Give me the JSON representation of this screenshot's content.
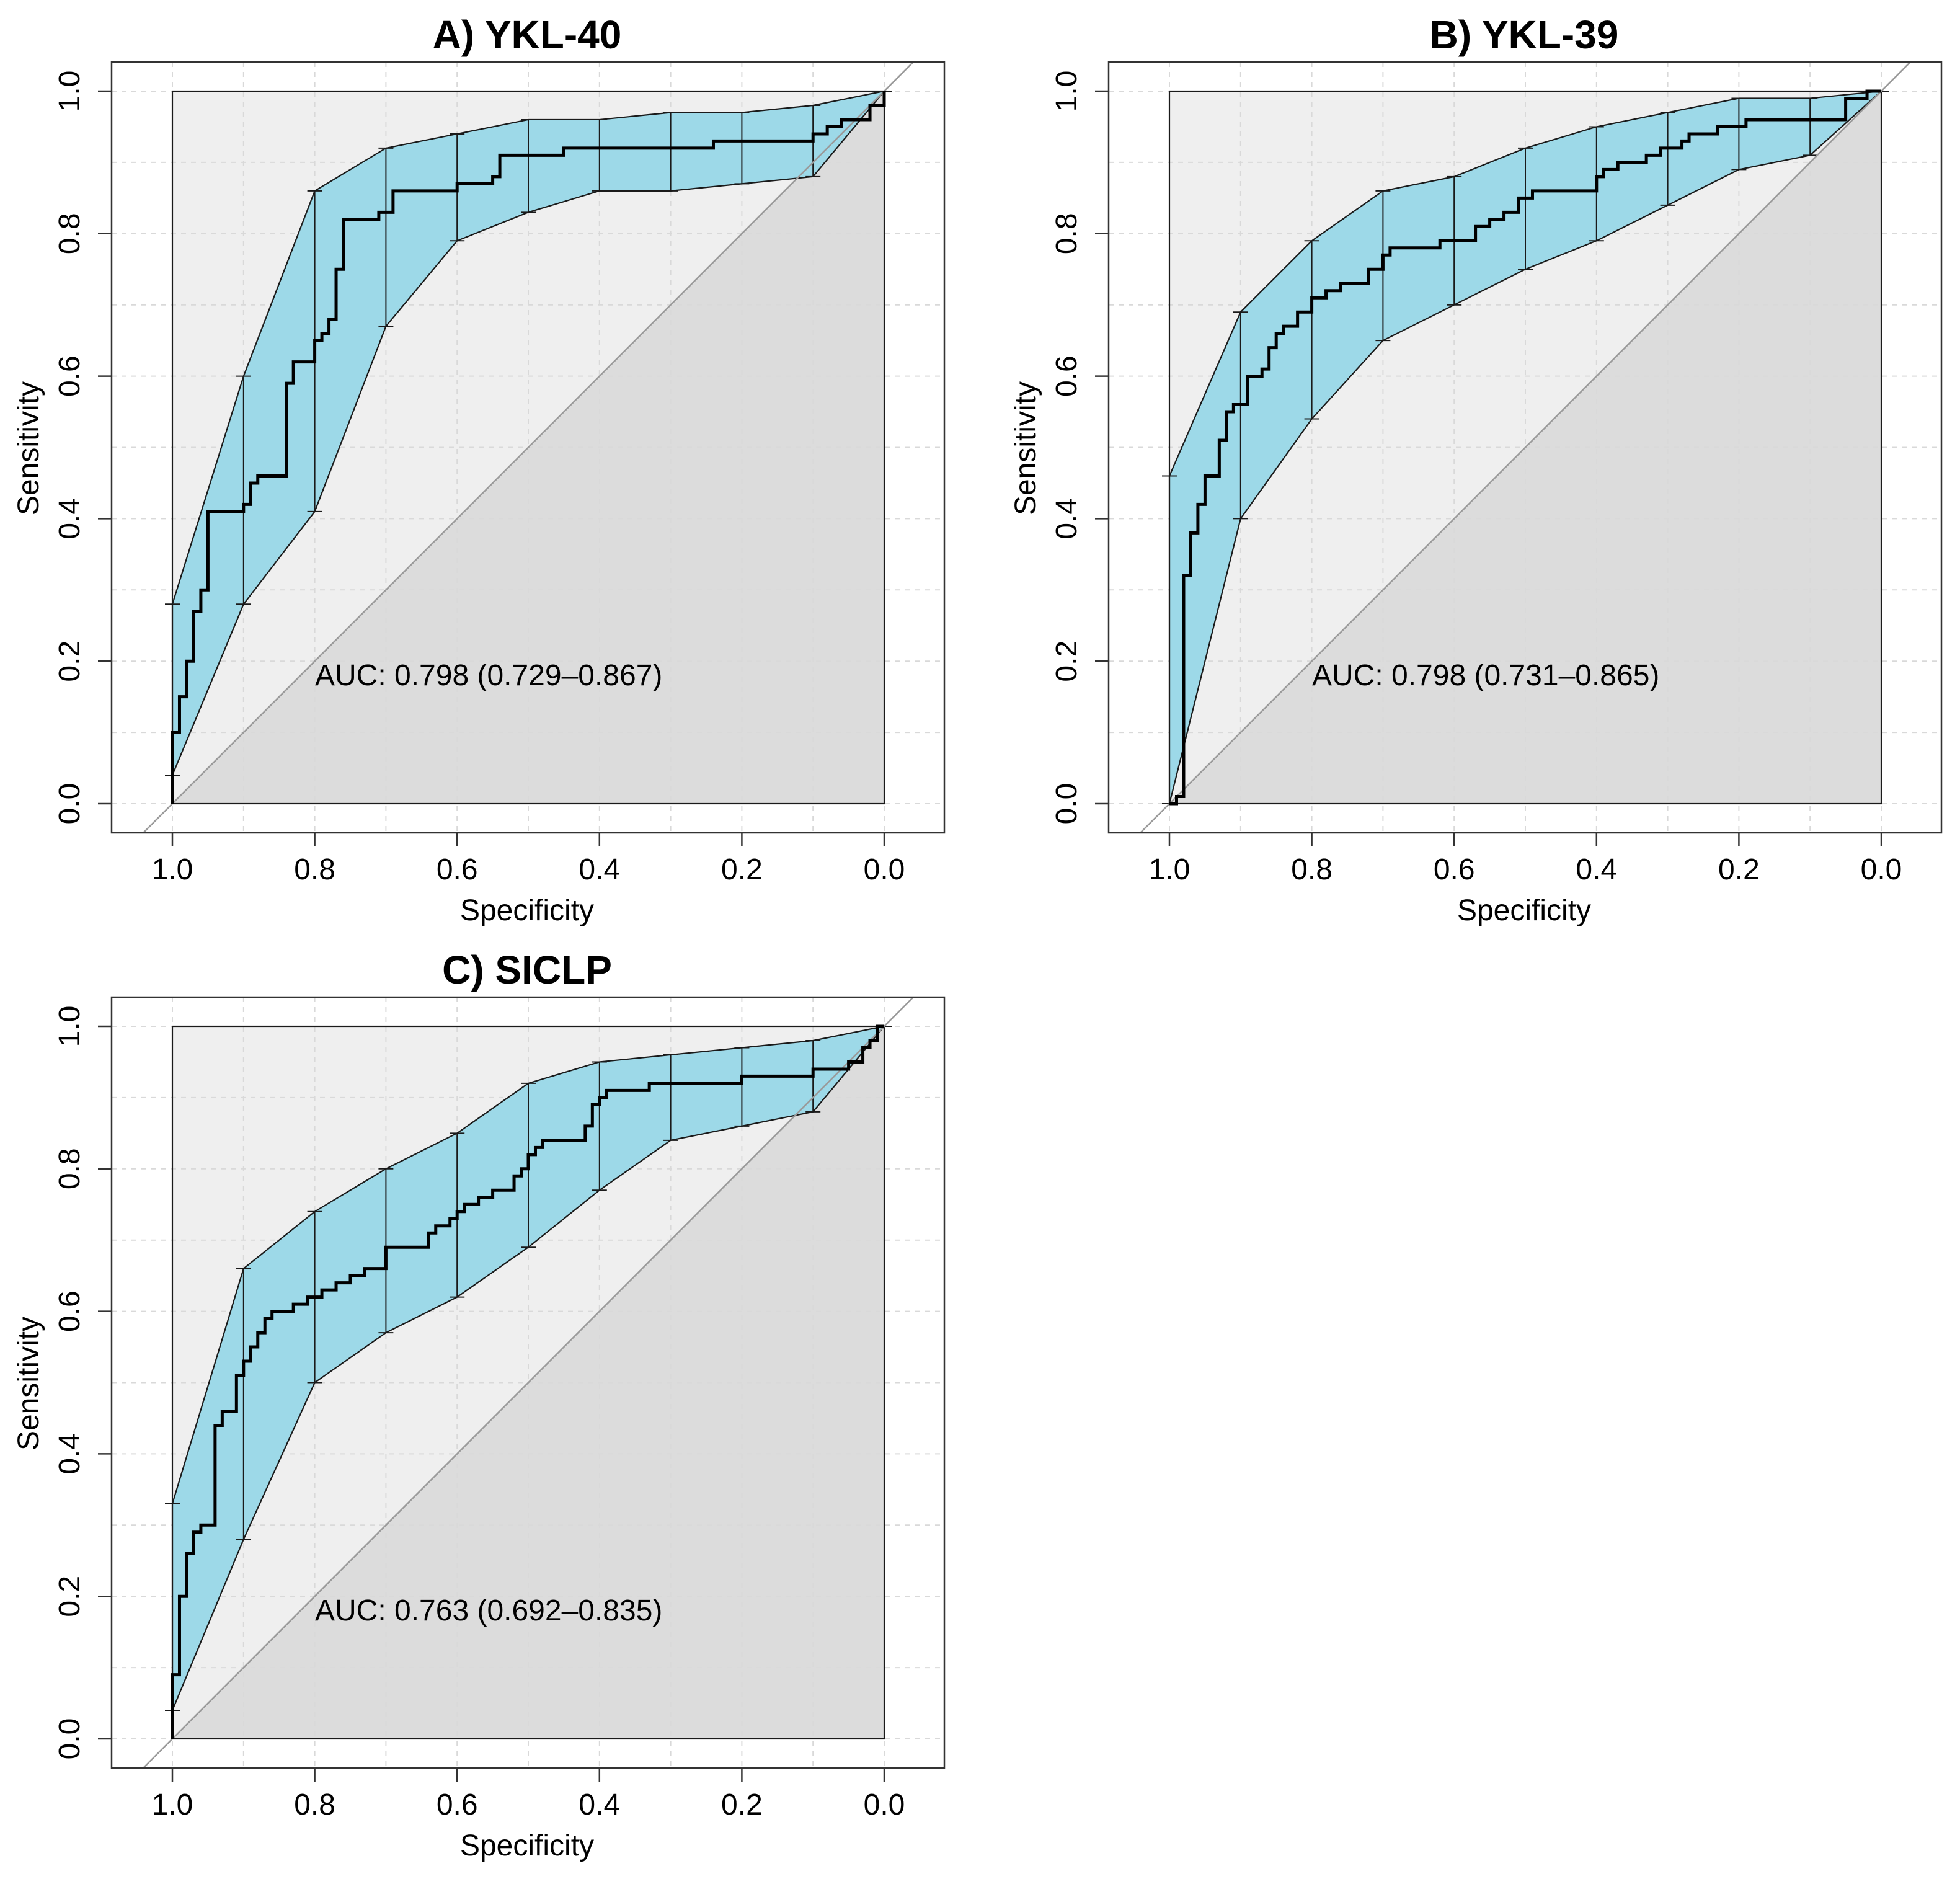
{
  "chart_data": [
    {
      "type": "line",
      "title": "A) YKL-40",
      "xlabel": "Specificity",
      "ylabel": "Sensitivity",
      "xlim": [
        1.0,
        0.0
      ],
      "ylim": [
        0.0,
        1.0
      ],
      "x_reversed": true,
      "xticks": [
        "1.0",
        "0.8",
        "0.6",
        "0.4",
        "0.2",
        "0.0"
      ],
      "yticks": [
        "0.0",
        "0.2",
        "0.4",
        "0.6",
        "0.8",
        "1.0"
      ],
      "grid": true,
      "diagonal": true,
      "annotation": "AUC: 0.798 (0.729–0.867)",
      "roc": [
        [
          1.0,
          0.0
        ],
        [
          1.0,
          0.1
        ],
        [
          0.99,
          0.1
        ],
        [
          0.99,
          0.15
        ],
        [
          0.98,
          0.15
        ],
        [
          0.98,
          0.2
        ],
        [
          0.97,
          0.2
        ],
        [
          0.97,
          0.27
        ],
        [
          0.96,
          0.27
        ],
        [
          0.96,
          0.3
        ],
        [
          0.95,
          0.3
        ],
        [
          0.95,
          0.41
        ],
        [
          0.9,
          0.41
        ],
        [
          0.9,
          0.42
        ],
        [
          0.89,
          0.42
        ],
        [
          0.89,
          0.45
        ],
        [
          0.88,
          0.45
        ],
        [
          0.88,
          0.46
        ],
        [
          0.84,
          0.46
        ],
        [
          0.84,
          0.59
        ],
        [
          0.83,
          0.59
        ],
        [
          0.83,
          0.62
        ],
        [
          0.8,
          0.62
        ],
        [
          0.8,
          0.65
        ],
        [
          0.79,
          0.65
        ],
        [
          0.79,
          0.66
        ],
        [
          0.78,
          0.66
        ],
        [
          0.78,
          0.68
        ],
        [
          0.77,
          0.68
        ],
        [
          0.77,
          0.75
        ],
        [
          0.76,
          0.75
        ],
        [
          0.76,
          0.82
        ],
        [
          0.71,
          0.82
        ],
        [
          0.71,
          0.83
        ],
        [
          0.69,
          0.83
        ],
        [
          0.69,
          0.86
        ],
        [
          0.6,
          0.86
        ],
        [
          0.6,
          0.87
        ],
        [
          0.55,
          0.87
        ],
        [
          0.55,
          0.88
        ],
        [
          0.54,
          0.88
        ],
        [
          0.54,
          0.91
        ],
        [
          0.45,
          0.91
        ],
        [
          0.45,
          0.92
        ],
        [
          0.24,
          0.92
        ],
        [
          0.24,
          0.93
        ],
        [
          0.1,
          0.93
        ],
        [
          0.1,
          0.94
        ],
        [
          0.08,
          0.94
        ],
        [
          0.08,
          0.95
        ],
        [
          0.06,
          0.95
        ],
        [
          0.06,
          0.96
        ],
        [
          0.02,
          0.96
        ],
        [
          0.02,
          0.98
        ],
        [
          0.0,
          0.98
        ],
        [
          0.0,
          1.0
        ]
      ],
      "ci_x": [
        1.0,
        0.9,
        0.8,
        0.7,
        0.6,
        0.5,
        0.4,
        0.3,
        0.2,
        0.1,
        0.0
      ],
      "ci_upper": [
        0.28,
        0.6,
        0.86,
        0.92,
        0.94,
        0.96,
        0.96,
        0.97,
        0.97,
        0.98,
        1.0
      ],
      "ci_lower": [
        0.04,
        0.28,
        0.41,
        0.67,
        0.79,
        0.83,
        0.86,
        0.86,
        0.87,
        0.88,
        1.0
      ]
    },
    {
      "type": "line",
      "title": "B) YKL-39",
      "xlabel": "Specificity",
      "ylabel": "Sensitivity",
      "xlim": [
        1.0,
        0.0
      ],
      "ylim": [
        0.0,
        1.0
      ],
      "x_reversed": true,
      "xticks": [
        "1.0",
        "0.8",
        "0.6",
        "0.4",
        "0.2",
        "0.0"
      ],
      "yticks": [
        "0.0",
        "0.2",
        "0.4",
        "0.6",
        "0.8",
        "1.0"
      ],
      "grid": true,
      "diagonal": true,
      "annotation": "AUC: 0.798 (0.731–0.865)",
      "roc": [
        [
          1.0,
          0.0
        ],
        [
          0.99,
          0.0
        ],
        [
          0.99,
          0.01
        ],
        [
          0.98,
          0.01
        ],
        [
          0.98,
          0.32
        ],
        [
          0.97,
          0.32
        ],
        [
          0.97,
          0.38
        ],
        [
          0.96,
          0.38
        ],
        [
          0.96,
          0.42
        ],
        [
          0.95,
          0.42
        ],
        [
          0.95,
          0.46
        ],
        [
          0.93,
          0.46
        ],
        [
          0.93,
          0.51
        ],
        [
          0.92,
          0.51
        ],
        [
          0.92,
          0.55
        ],
        [
          0.91,
          0.55
        ],
        [
          0.91,
          0.56
        ],
        [
          0.89,
          0.56
        ],
        [
          0.89,
          0.6
        ],
        [
          0.87,
          0.6
        ],
        [
          0.87,
          0.61
        ],
        [
          0.86,
          0.61
        ],
        [
          0.86,
          0.64
        ],
        [
          0.85,
          0.64
        ],
        [
          0.85,
          0.66
        ],
        [
          0.84,
          0.66
        ],
        [
          0.84,
          0.67
        ],
        [
          0.82,
          0.67
        ],
        [
          0.82,
          0.69
        ],
        [
          0.8,
          0.69
        ],
        [
          0.8,
          0.71
        ],
        [
          0.78,
          0.71
        ],
        [
          0.78,
          0.72
        ],
        [
          0.76,
          0.72
        ],
        [
          0.76,
          0.73
        ],
        [
          0.72,
          0.73
        ],
        [
          0.72,
          0.75
        ],
        [
          0.7,
          0.75
        ],
        [
          0.7,
          0.77
        ],
        [
          0.69,
          0.77
        ],
        [
          0.69,
          0.78
        ],
        [
          0.62,
          0.78
        ],
        [
          0.62,
          0.79
        ],
        [
          0.57,
          0.79
        ],
        [
          0.57,
          0.81
        ],
        [
          0.55,
          0.81
        ],
        [
          0.55,
          0.82
        ],
        [
          0.53,
          0.82
        ],
        [
          0.53,
          0.83
        ],
        [
          0.51,
          0.83
        ],
        [
          0.51,
          0.85
        ],
        [
          0.49,
          0.85
        ],
        [
          0.49,
          0.86
        ],
        [
          0.4,
          0.86
        ],
        [
          0.4,
          0.88
        ],
        [
          0.39,
          0.88
        ],
        [
          0.39,
          0.89
        ],
        [
          0.37,
          0.89
        ],
        [
          0.37,
          0.9
        ],
        [
          0.33,
          0.9
        ],
        [
          0.33,
          0.91
        ],
        [
          0.31,
          0.91
        ],
        [
          0.31,
          0.92
        ],
        [
          0.28,
          0.92
        ],
        [
          0.28,
          0.93
        ],
        [
          0.27,
          0.93
        ],
        [
          0.27,
          0.94
        ],
        [
          0.23,
          0.94
        ],
        [
          0.23,
          0.95
        ],
        [
          0.19,
          0.95
        ],
        [
          0.19,
          0.96
        ],
        [
          0.05,
          0.96
        ],
        [
          0.05,
          0.99
        ],
        [
          0.02,
          0.99
        ],
        [
          0.02,
          1.0
        ],
        [
          0.0,
          1.0
        ]
      ],
      "ci_x": [
        1.0,
        0.9,
        0.8,
        0.7,
        0.6,
        0.5,
        0.4,
        0.3,
        0.2,
        0.1,
        0.0
      ],
      "ci_upper": [
        0.46,
        0.69,
        0.79,
        0.86,
        0.88,
        0.92,
        0.95,
        0.97,
        0.99,
        0.99,
        1.0
      ],
      "ci_lower": [
        0.0,
        0.4,
        0.54,
        0.65,
        0.7,
        0.75,
        0.79,
        0.84,
        0.89,
        0.91,
        1.0
      ]
    },
    {
      "type": "line",
      "title": "C) SICLP",
      "xlabel": "Specificity",
      "ylabel": "Sensitivity",
      "xlim": [
        1.0,
        0.0
      ],
      "ylim": [
        0.0,
        1.0
      ],
      "x_reversed": true,
      "xticks": [
        "1.0",
        "0.8",
        "0.6",
        "0.4",
        "0.2",
        "0.0"
      ],
      "yticks": [
        "0.0",
        "0.2",
        "0.4",
        "0.6",
        "0.8",
        "1.0"
      ],
      "grid": true,
      "diagonal": true,
      "annotation": "AUC: 0.763 (0.692–0.835)",
      "roc": [
        [
          1.0,
          0.0
        ],
        [
          1.0,
          0.09
        ],
        [
          0.99,
          0.09
        ],
        [
          0.99,
          0.2
        ],
        [
          0.98,
          0.2
        ],
        [
          0.98,
          0.26
        ],
        [
          0.97,
          0.26
        ],
        [
          0.97,
          0.29
        ],
        [
          0.96,
          0.29
        ],
        [
          0.96,
          0.3
        ],
        [
          0.94,
          0.3
        ],
        [
          0.94,
          0.44
        ],
        [
          0.93,
          0.44
        ],
        [
          0.93,
          0.46
        ],
        [
          0.91,
          0.46
        ],
        [
          0.91,
          0.51
        ],
        [
          0.9,
          0.51
        ],
        [
          0.9,
          0.53
        ],
        [
          0.89,
          0.53
        ],
        [
          0.89,
          0.55
        ],
        [
          0.88,
          0.55
        ],
        [
          0.88,
          0.57
        ],
        [
          0.87,
          0.57
        ],
        [
          0.87,
          0.59
        ],
        [
          0.86,
          0.59
        ],
        [
          0.86,
          0.6
        ],
        [
          0.83,
          0.6
        ],
        [
          0.83,
          0.61
        ],
        [
          0.81,
          0.61
        ],
        [
          0.81,
          0.62
        ],
        [
          0.79,
          0.62
        ],
        [
          0.79,
          0.63
        ],
        [
          0.77,
          0.63
        ],
        [
          0.77,
          0.64
        ],
        [
          0.75,
          0.64
        ],
        [
          0.75,
          0.65
        ],
        [
          0.73,
          0.65
        ],
        [
          0.73,
          0.66
        ],
        [
          0.7,
          0.66
        ],
        [
          0.7,
          0.69
        ],
        [
          0.64,
          0.69
        ],
        [
          0.64,
          0.71
        ],
        [
          0.63,
          0.71
        ],
        [
          0.63,
          0.72
        ],
        [
          0.61,
          0.72
        ],
        [
          0.61,
          0.73
        ],
        [
          0.6,
          0.73
        ],
        [
          0.6,
          0.74
        ],
        [
          0.59,
          0.74
        ],
        [
          0.59,
          0.75
        ],
        [
          0.57,
          0.75
        ],
        [
          0.57,
          0.76
        ],
        [
          0.55,
          0.76
        ],
        [
          0.55,
          0.77
        ],
        [
          0.52,
          0.77
        ],
        [
          0.52,
          0.79
        ],
        [
          0.51,
          0.79
        ],
        [
          0.51,
          0.8
        ],
        [
          0.5,
          0.8
        ],
        [
          0.5,
          0.82
        ],
        [
          0.49,
          0.82
        ],
        [
          0.49,
          0.83
        ],
        [
          0.48,
          0.83
        ],
        [
          0.48,
          0.84
        ],
        [
          0.42,
          0.84
        ],
        [
          0.42,
          0.86
        ],
        [
          0.41,
          0.86
        ],
        [
          0.41,
          0.89
        ],
        [
          0.4,
          0.89
        ],
        [
          0.4,
          0.9
        ],
        [
          0.39,
          0.9
        ],
        [
          0.39,
          0.91
        ],
        [
          0.33,
          0.91
        ],
        [
          0.33,
          0.92
        ],
        [
          0.2,
          0.92
        ],
        [
          0.2,
          0.93
        ],
        [
          0.1,
          0.93
        ],
        [
          0.1,
          0.94
        ],
        [
          0.05,
          0.94
        ],
        [
          0.05,
          0.95
        ],
        [
          0.03,
          0.95
        ],
        [
          0.03,
          0.97
        ],
        [
          0.02,
          0.97
        ],
        [
          0.02,
          0.98
        ],
        [
          0.01,
          0.98
        ],
        [
          0.01,
          1.0
        ],
        [
          0.0,
          1.0
        ]
      ],
      "ci_x": [
        1.0,
        0.9,
        0.8,
        0.7,
        0.6,
        0.5,
        0.4,
        0.3,
        0.2,
        0.1,
        0.0
      ],
      "ci_upper": [
        0.33,
        0.66,
        0.74,
        0.8,
        0.85,
        0.92,
        0.95,
        0.96,
        0.97,
        0.98,
        1.0
      ],
      "ci_lower": [
        0.04,
        0.28,
        0.5,
        0.57,
        0.62,
        0.69,
        0.77,
        0.84,
        0.86,
        0.88,
        1.0
      ]
    }
  ]
}
